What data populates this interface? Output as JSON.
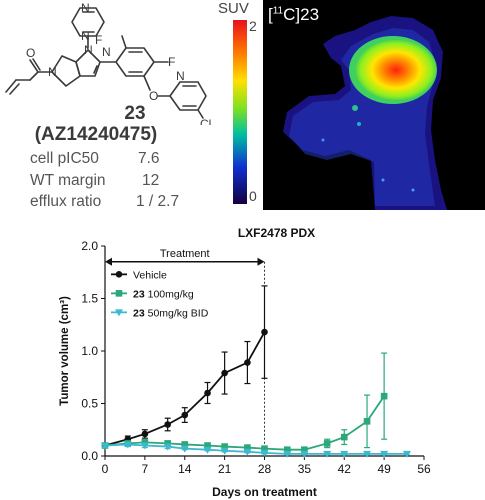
{
  "compound": {
    "number": "23",
    "code": "(AZ14240475)",
    "labels": {
      "F_top": "F",
      "F_right": "F",
      "Cl": "Cl",
      "N_ring": "N",
      "O_ether": "O"
    },
    "properties": [
      {
        "label": "cell pIC50",
        "value": "7.6"
      },
      {
        "label": "WT margin",
        "value": "12"
      },
      {
        "label": "efflux ratio",
        "value": "1 / 2.7"
      }
    ]
  },
  "pet_image": {
    "colorbar_label": "SUV",
    "colorbar_max": "2",
    "colorbar_min": "0",
    "label_prefix": "[",
    "label_isotope": "11",
    "label_element": "C]23"
  },
  "chart_data": {
    "type": "line",
    "title": "LXF2478 PDX",
    "xlabel": "Days on treatment",
    "ylabel": "Tumor volume (cm³)",
    "xlim": [
      0,
      56
    ],
    "ylim": [
      0,
      2.0
    ],
    "xticks": [
      "0",
      "7",
      "14",
      "21",
      "28",
      "35",
      "42",
      "49",
      "56"
    ],
    "yticks": [
      "0.0",
      "0.5",
      "1.0",
      "1.5",
      "2.0"
    ],
    "grid": false,
    "legend_position": "top-left",
    "treatment_window": {
      "label": "Treatment",
      "start": 0,
      "end": 28
    },
    "series": [
      {
        "name": "Vehicle",
        "name_bold": "",
        "color": "#111111",
        "marker": "circle",
        "x": [
          0,
          4,
          7,
          11,
          14,
          18,
          21,
          25,
          28
        ],
        "y": [
          0.1,
          0.16,
          0.21,
          0.3,
          0.39,
          0.6,
          0.79,
          0.89,
          1.18
        ],
        "err": [
          0.02,
          0.03,
          0.04,
          0.06,
          0.07,
          0.1,
          0.2,
          0.2,
          0.44
        ]
      },
      {
        "name": " 100mg/kg",
        "name_bold": "23",
        "color": "#2aa879",
        "marker": "square",
        "x": [
          0,
          4,
          7,
          11,
          14,
          18,
          21,
          25,
          28,
          32,
          35,
          39,
          42,
          46,
          49
        ],
        "y": [
          0.1,
          0.12,
          0.13,
          0.12,
          0.11,
          0.1,
          0.09,
          0.08,
          0.07,
          0.06,
          0.06,
          0.12,
          0.18,
          0.33,
          0.57
        ],
        "err": [
          0.02,
          0.02,
          0.02,
          0.02,
          0.02,
          0.02,
          0.02,
          0.02,
          0.02,
          0.02,
          0.02,
          0.04,
          0.07,
          0.25,
          0.41
        ]
      },
      {
        "name": " 50mg/kg BID",
        "name_bold": "23",
        "color": "#3cb8cf",
        "marker": "triangle-down",
        "x": [
          0,
          4,
          7,
          11,
          14,
          18,
          21,
          25,
          28,
          32,
          35,
          39,
          42,
          46,
          49,
          53
        ],
        "y": [
          0.1,
          0.11,
          0.1,
          0.09,
          0.07,
          0.06,
          0.05,
          0.04,
          0.03,
          0.02,
          0.02,
          0.02,
          0.02,
          0.02,
          0.02,
          0.02
        ],
        "err": [
          0.02,
          0.02,
          0.02,
          0.02,
          0.01,
          0.01,
          0.01,
          0.01,
          0.01,
          0.01,
          0.01,
          0.01,
          0.01,
          0.01,
          0.01,
          0.01
        ]
      }
    ]
  }
}
